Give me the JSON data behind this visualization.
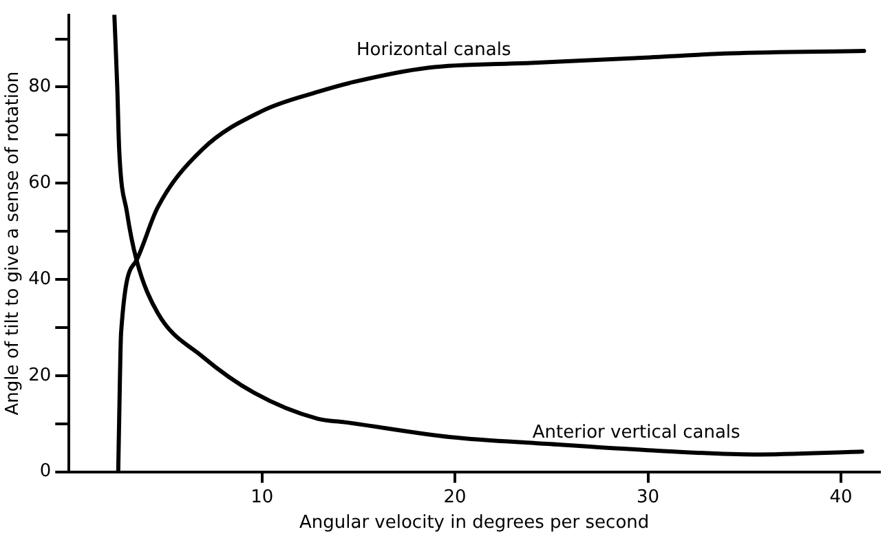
{
  "chart_data": {
    "type": "line",
    "xlabel": "Angular velocity in degrees per second",
    "ylabel": "Angle of tilt to give a sense of rotation",
    "xlim": [
      0,
      42
    ],
    "xticks": [
      10,
      20,
      30,
      40
    ],
    "ylim": [
      0,
      95
    ],
    "yticks": [
      0,
      {
        "value": 10,
        "label": null
      },
      20,
      {
        "value": 30,
        "label": null
      },
      40,
      {
        "value": 50,
        "label": null
      },
      60,
      {
        "value": 70,
        "label": null
      },
      80,
      {
        "value": 90,
        "label": null
      }
    ],
    "grid": false,
    "legend": false,
    "marker": "none",
    "line_style": "solid",
    "series": [
      {
        "name": "Horizontal canals",
        "color": "#000000",
        "x": [
          2.55,
          2.6,
          2.7,
          3.5,
          4.6,
          6.9,
          10,
          12.9,
          14.7,
          18.6,
          23.9,
          29.3,
          34.3,
          41.2
        ],
        "values": [
          0,
          11,
          29,
          44,
          55,
          67,
          75,
          79,
          81,
          84,
          85,
          86,
          87,
          87.5
        ]
      },
      {
        "name": "Anterior vertical canals",
        "color": "#000000",
        "x": [
          2.35,
          2.5,
          2.6,
          3,
          3.5,
          4.6,
          6.9,
          9.6,
          12.9,
          14.3,
          19.8,
          24.8,
          30,
          35.5,
          41.1
        ],
        "values": [
          95,
          80,
          67,
          54,
          44,
          33,
          24,
          16.4,
          11,
          10.3,
          7.2,
          5.8,
          4.5,
          3.6,
          4.2
        ]
      }
    ]
  }
}
